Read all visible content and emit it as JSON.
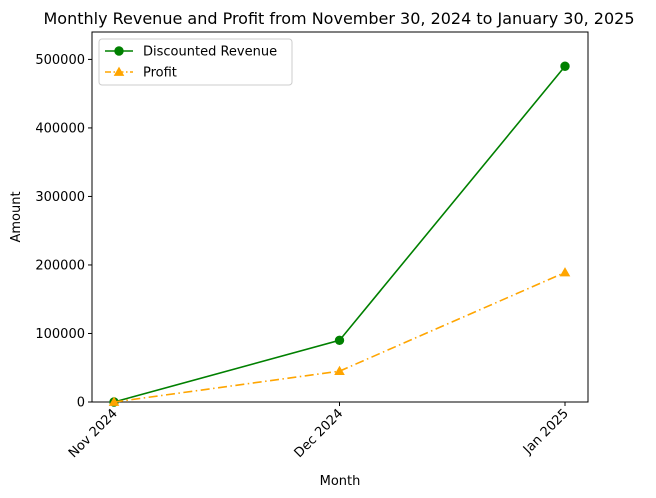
{
  "chart_data": {
    "type": "line",
    "title": "Monthly Revenue and Profit from November 30, 2024 to January 30, 2025",
    "xlabel": "Month",
    "ylabel": "Amount",
    "categories": [
      "Nov 2024",
      "Dec 2024",
      "Jan 2025"
    ],
    "ylim": [
      0,
      540000
    ],
    "yticks": [
      0,
      100000,
      200000,
      300000,
      400000,
      500000
    ],
    "ytick_labels": [
      "0",
      "100000",
      "200000",
      "300000",
      "400000",
      "500000"
    ],
    "grid": false,
    "legend_position": "upper-left",
    "series": [
      {
        "name": "Discounted Revenue",
        "values": [
          0,
          90000,
          490000
        ],
        "color": "#008000",
        "marker": "circle",
        "line_style": "solid"
      },
      {
        "name": "Profit",
        "values": [
          0,
          45000,
          189000
        ],
        "color": "#ffa500",
        "marker": "triangle",
        "line_style": "dash-dot"
      }
    ]
  }
}
